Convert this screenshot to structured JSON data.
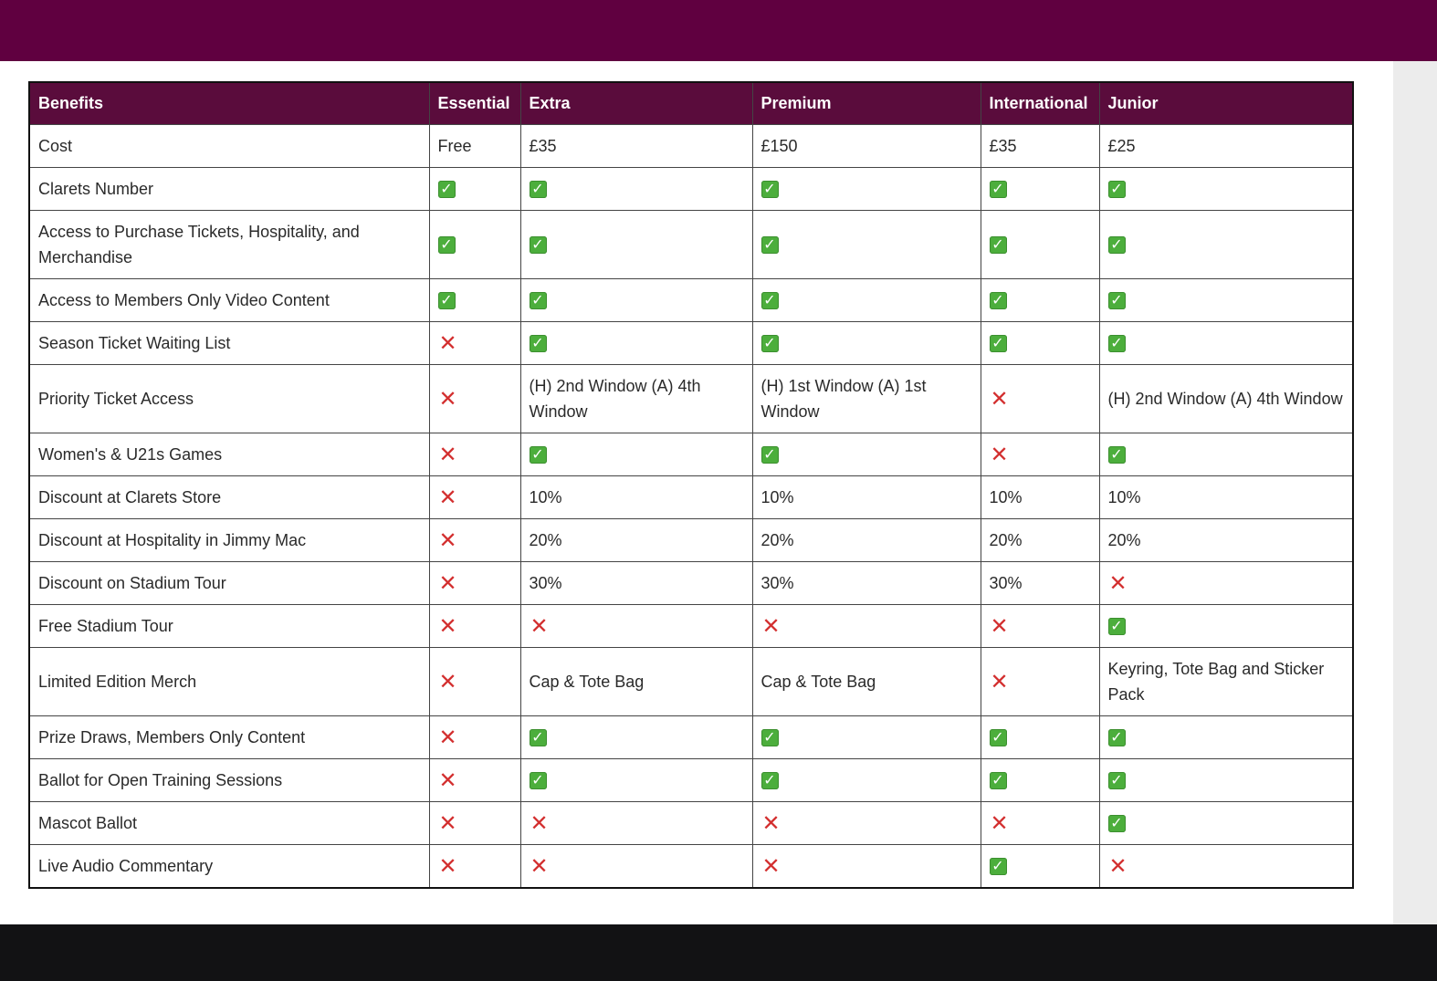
{
  "colors": {
    "top_bar": "#600040",
    "header_bg": "#5a0c3c",
    "check": "#4cae3c",
    "cross": "#d32f2f",
    "bottom_bar": "#121214"
  },
  "table": {
    "headers": [
      "Benefits",
      "Essential",
      "Extra",
      "Premium",
      "International",
      "Junior"
    ],
    "rows": [
      {
        "benefit": "Cost",
        "cells": [
          "Free",
          "£35",
          "£150",
          "£35",
          "£25"
        ]
      },
      {
        "benefit": "Clarets Number",
        "cells": [
          "check",
          "check",
          "check",
          "check",
          "check"
        ]
      },
      {
        "benefit": "Access to Purchase Tickets, Hospitality, and Merchandise",
        "cells": [
          "check",
          "check",
          "check",
          "check",
          "check"
        ]
      },
      {
        "benefit": "Access to Members Only Video Content",
        "cells": [
          "check",
          "check",
          "check",
          "check",
          "check"
        ]
      },
      {
        "benefit": "Season Ticket Waiting List",
        "cells": [
          "cross",
          "check",
          "check",
          "check",
          "check"
        ]
      },
      {
        "benefit": "Priority Ticket Access",
        "cells": [
          "cross",
          "(H) 2nd Window (A) 4th Window",
          "(H) 1st Window (A) 1st Window",
          "cross",
          "(H) 2nd Window (A) 4th Window"
        ]
      },
      {
        "benefit": "Women's & U21s Games",
        "cells": [
          "cross",
          "check",
          "check",
          "cross",
          "check"
        ]
      },
      {
        "benefit": "Discount at Clarets Store",
        "cells": [
          "cross",
          "10%",
          "10%",
          "10%",
          "10%"
        ]
      },
      {
        "benefit": "Discount at Hospitality in Jimmy Mac",
        "cells": [
          "cross",
          "20%",
          "20%",
          "20%",
          "20%"
        ]
      },
      {
        "benefit": "Discount on Stadium Tour",
        "cells": [
          "cross",
          "30%",
          "30%",
          "30%",
          "cross"
        ]
      },
      {
        "benefit": "Free Stadium Tour",
        "cells": [
          "cross",
          "cross",
          "cross",
          "cross",
          "check"
        ]
      },
      {
        "benefit": "Limited Edition Merch",
        "cells": [
          "cross",
          "Cap & Tote Bag",
          "Cap & Tote Bag",
          "cross",
          "Keyring, Tote Bag and Sticker Pack"
        ]
      },
      {
        "benefit": "Prize Draws, Members Only Content",
        "cells": [
          "cross",
          "check",
          "check",
          "check",
          "check"
        ]
      },
      {
        "benefit": "Ballot for Open Training Sessions",
        "cells": [
          "cross",
          "check",
          "check",
          "check",
          "check"
        ]
      },
      {
        "benefit": "Mascot Ballot",
        "cells": [
          "cross",
          "cross",
          "cross",
          "cross",
          "check"
        ]
      },
      {
        "benefit": "Live Audio Commentary",
        "cells": [
          "cross",
          "cross",
          "cross",
          "check",
          "cross"
        ]
      }
    ]
  },
  "icons": {
    "check": "check-mark-icon",
    "cross": "cross-mark-icon"
  }
}
